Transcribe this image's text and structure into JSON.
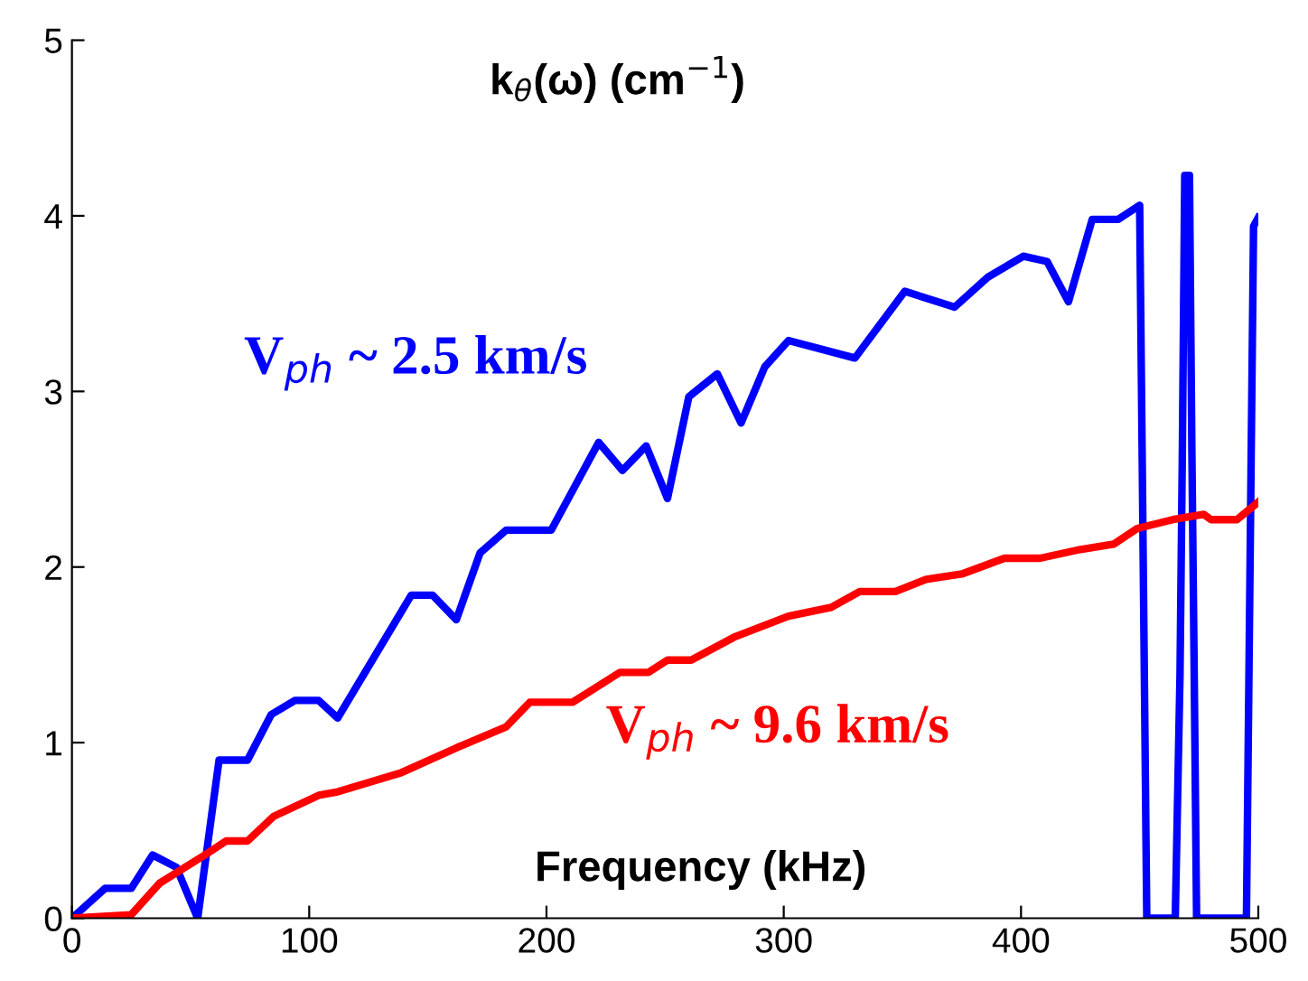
{
  "chart_data": {
    "type": "line",
    "title": "k$_{θ}$(ω) (cm$^{−1}$)",
    "xlabel": "Frequency (kHz)",
    "xlim": [
      0,
      500
    ],
    "ylim": [
      0,
      5
    ],
    "xticks": [
      0,
      100,
      200,
      300,
      400,
      500
    ],
    "yticks": [
      0,
      1,
      2,
      3,
      4,
      5
    ],
    "grid": false,
    "legend": false,
    "marker": "none",
    "line_style": "solid",
    "series": [
      {
        "name": "V$_{ph}$ ~ 2.5 km/s",
        "color": "#0000ff",
        "x": [
          0,
          14,
          25,
          34,
          44,
          53,
          62,
          74,
          84,
          94,
          104,
          112,
          143,
          152,
          162,
          172,
          183,
          202,
          222,
          232,
          242,
          251,
          260,
          272,
          282,
          292,
          302,
          330,
          351,
          372,
          386,
          401,
          411,
          420,
          430,
          441,
          450,
          451,
          453,
          465,
          467,
          468,
          469,
          471,
          472,
          473,
          474,
          495,
          496,
          497,
          498,
          500
        ],
        "values": [
          0,
          0.17,
          0.17,
          0.36,
          0.29,
          0,
          0.9,
          0.9,
          1.16,
          1.24,
          1.24,
          1.14,
          1.84,
          1.84,
          1.7,
          2.08,
          2.21,
          2.21,
          2.71,
          2.55,
          2.69,
          2.39,
          2.97,
          3.1,
          2.82,
          3.14,
          3.29,
          3.19,
          3.57,
          3.48,
          3.65,
          3.77,
          3.74,
          3.51,
          3.98,
          3.98,
          4.06,
          2.71,
          0,
          0,
          1.38,
          2.67,
          4.23,
          4.23,
          2.67,
          1.38,
          0,
          0,
          1.31,
          2.64,
          3.94,
          3.99
        ]
      },
      {
        "name": "V$_{ph}$ ~ 9.6 km/s",
        "color": "#ff0000",
        "x": [
          0,
          25,
          37,
          56,
          65,
          74,
          85,
          104,
          112,
          139,
          162,
          183,
          193,
          211,
          231,
          243,
          251,
          261,
          279,
          302,
          320,
          332,
          347,
          360,
          375,
          393,
          408,
          425,
          439,
          449,
          464,
          477,
          480,
          491,
          500
        ],
        "values": [
          0,
          0.02,
          0.2,
          0.36,
          0.44,
          0.44,
          0.58,
          0.7,
          0.72,
          0.83,
          0.97,
          1.09,
          1.23,
          1.23,
          1.4,
          1.4,
          1.47,
          1.47,
          1.6,
          1.72,
          1.77,
          1.86,
          1.86,
          1.93,
          1.96,
          2.05,
          2.05,
          2.1,
          2.13,
          2.22,
          2.27,
          2.3,
          2.27,
          2.27,
          2.37
        ]
      }
    ]
  }
}
